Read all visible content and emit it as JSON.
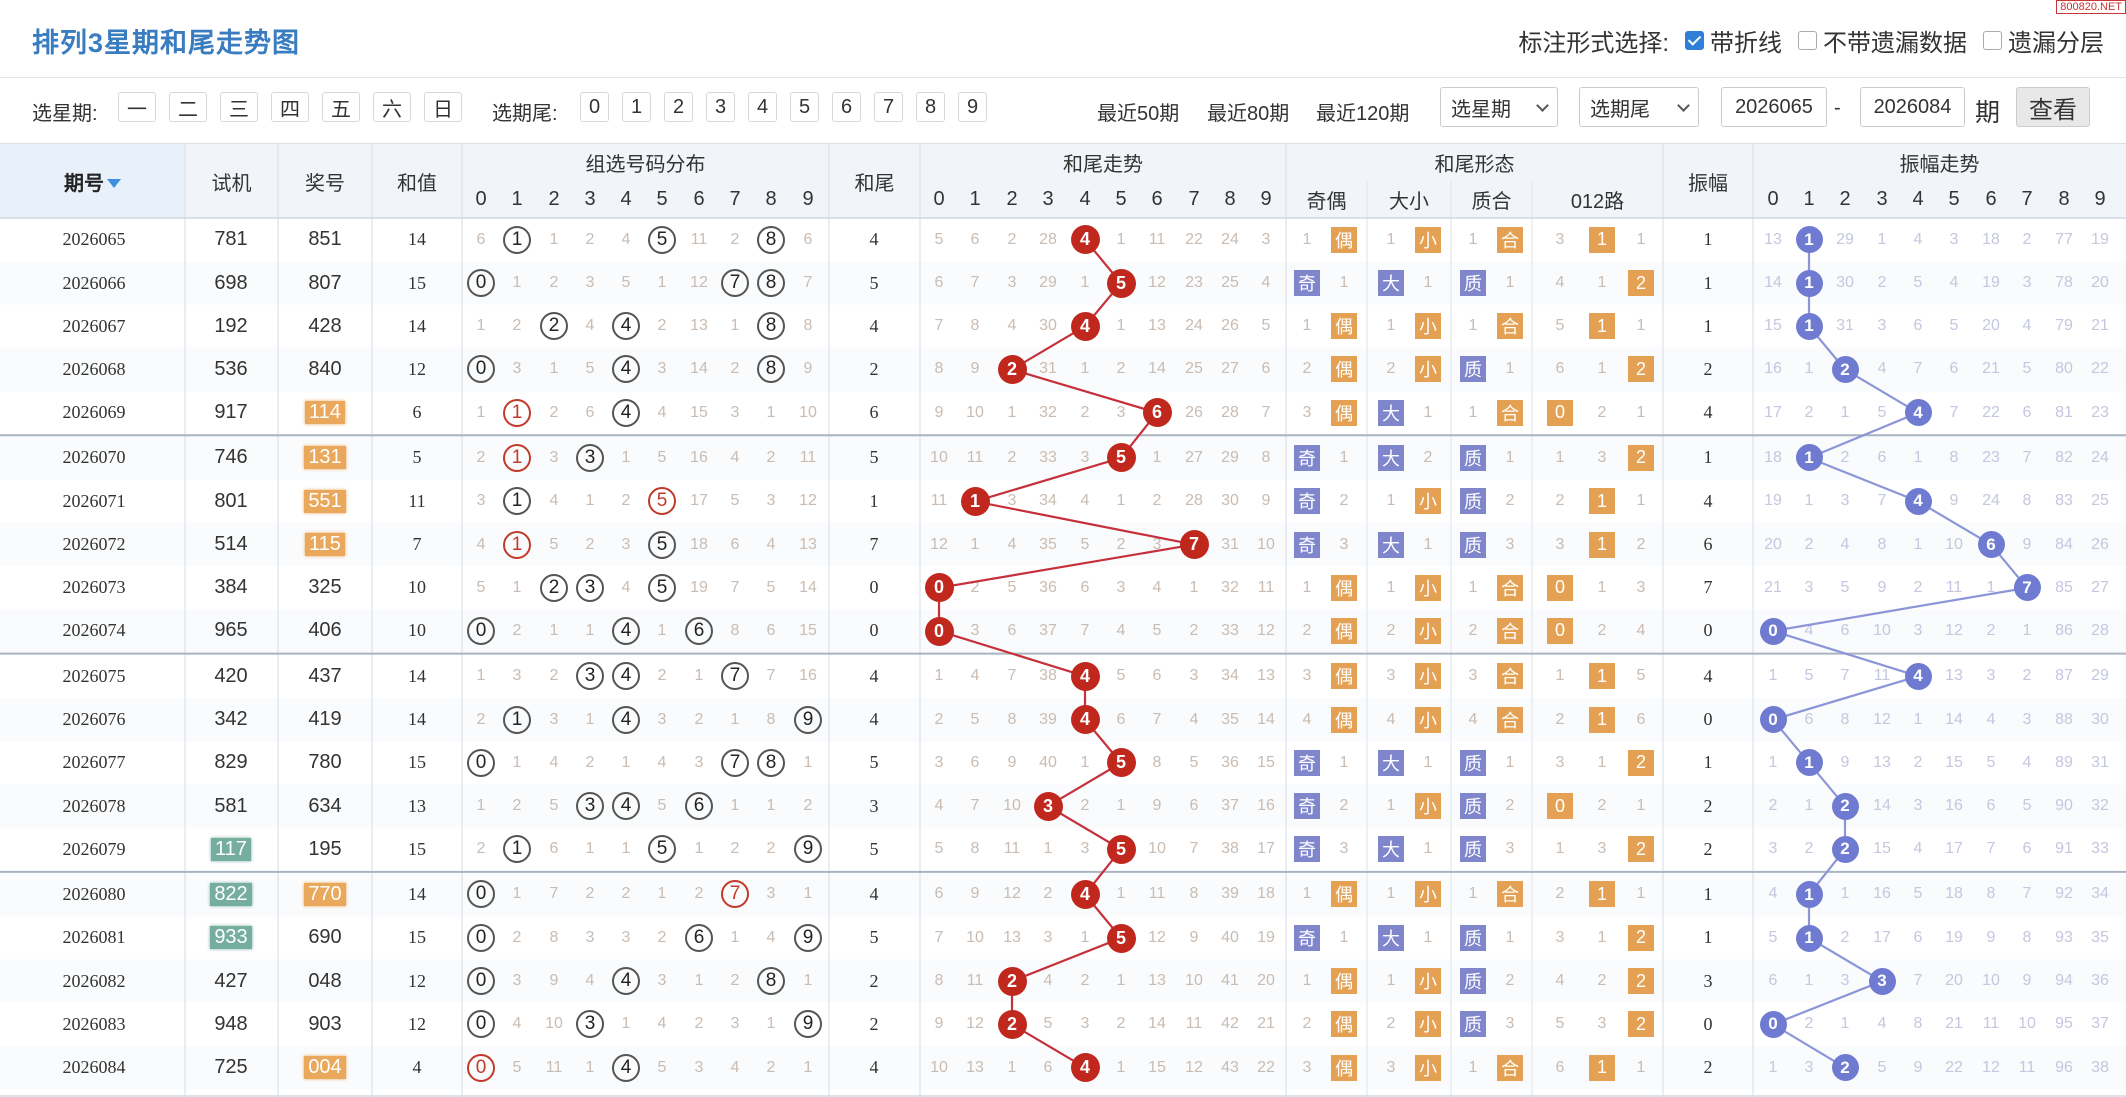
{
  "page": {
    "title": "排列3星期和尾走势图",
    "watermark": "800820.NET",
    "mark_label": "标注形式选择:",
    "mark_options": [
      {
        "label": "带折线",
        "checked": true
      },
      {
        "label": "不带遗漏数据",
        "checked": false
      },
      {
        "label": "遗漏分层",
        "checked": false
      }
    ]
  },
  "toolbar": {
    "weekday_label": "选星期:",
    "weekdays": [
      "一",
      "二",
      "三",
      "四",
      "五",
      "六",
      "日"
    ],
    "tail_label": "选期尾:",
    "tails": [
      "0",
      "1",
      "2",
      "3",
      "4",
      "5",
      "6",
      "7",
      "8",
      "9"
    ],
    "ranges": [
      "最近50期",
      "最近80期",
      "最近120期"
    ],
    "select_week": "选星期",
    "select_tail": "选期尾",
    "from": "2026065",
    "dash": "-",
    "to": "2026084",
    "period_char": "期",
    "query": "查看"
  },
  "headers": {
    "issue": "期号",
    "trial": "试机",
    "prize": "奖号",
    "sum": "和值",
    "group_dist": "组选号码分布",
    "tail": "和尾",
    "tail_trend": "和尾走势",
    "tail_form": "和尾形态",
    "odd_even": "奇偶",
    "big_small": "大小",
    "prime_comp": "质合",
    "road": "012路",
    "amp": "振幅",
    "amp_trend": "振幅走势",
    "digits": [
      "0",
      "1",
      "2",
      "3",
      "4",
      "5",
      "6",
      "7",
      "8",
      "9"
    ]
  },
  "form_labels": {
    "odd": "奇",
    "even": "偶",
    "big": "大",
    "small": "小",
    "prime": "质",
    "comp": "合"
  },
  "rows": [
    {
      "issue": "2026065",
      "trial": "781",
      "trial_hl": false,
      "prize": "851",
      "prize_hl": false,
      "sum": "14",
      "tail": "4",
      "amp": "1",
      "dist": [
        "6",
        "1",
        "1",
        "2",
        "4",
        "5",
        "11",
        "2",
        "8",
        "6"
      ],
      "trend": [
        "5",
        "6",
        "2",
        "28",
        "4",
        "1",
        "11",
        "22",
        "24",
        "3"
      ],
      "oe": [
        "1",
        "偶"
      ],
      "bs": [
        "1",
        "小"
      ],
      "pc": [
        "1",
        "合"
      ],
      "road": [
        "3",
        "1",
        "1"
      ],
      "ampt": [
        "13",
        "1",
        "29",
        "1",
        "4",
        "3",
        "18",
        "2",
        "77",
        "19"
      ]
    },
    {
      "issue": "2026066",
      "trial": "698",
      "trial_hl": false,
      "prize": "807",
      "prize_hl": false,
      "sum": "15",
      "tail": "5",
      "amp": "1",
      "dist": [
        "0",
        "1",
        "2",
        "3",
        "5",
        "1",
        "12",
        "7",
        "8",
        "7"
      ],
      "trend": [
        "6",
        "7",
        "3",
        "29",
        "1",
        "5",
        "12",
        "23",
        "25",
        "4"
      ],
      "oe": [
        "奇",
        "1"
      ],
      "bs": [
        "大",
        "1"
      ],
      "pc": [
        "质",
        "1"
      ],
      "road": [
        "4",
        "1",
        "2"
      ],
      "ampt": [
        "14",
        "1",
        "30",
        "2",
        "5",
        "4",
        "19",
        "3",
        "78",
        "20"
      ]
    },
    {
      "issue": "2026067",
      "trial": "192",
      "trial_hl": false,
      "prize": "428",
      "prize_hl": false,
      "sum": "14",
      "tail": "4",
      "amp": "1",
      "dist": [
        "1",
        "2",
        "2",
        "4",
        "4",
        "2",
        "13",
        "1",
        "8",
        "8"
      ],
      "trend": [
        "7",
        "8",
        "4",
        "30",
        "4",
        "1",
        "13",
        "24",
        "26",
        "5"
      ],
      "oe": [
        "1",
        "偶"
      ],
      "bs": [
        "1",
        "小"
      ],
      "pc": [
        "1",
        "合"
      ],
      "road": [
        "5",
        "1",
        "1"
      ],
      "ampt": [
        "15",
        "1",
        "31",
        "3",
        "6",
        "5",
        "20",
        "4",
        "79",
        "21"
      ]
    },
    {
      "issue": "2026068",
      "trial": "536",
      "trial_hl": false,
      "prize": "840",
      "prize_hl": false,
      "sum": "12",
      "tail": "2",
      "amp": "2",
      "dist": [
        "0",
        "3",
        "1",
        "5",
        "4",
        "3",
        "14",
        "2",
        "8",
        "9"
      ],
      "trend": [
        "8",
        "9",
        "2",
        "31",
        "1",
        "2",
        "14",
        "25",
        "27",
        "6"
      ],
      "oe": [
        "2",
        "偶"
      ],
      "bs": [
        "2",
        "小"
      ],
      "pc": [
        "质",
        "1"
      ],
      "road": [
        "6",
        "1",
        "2"
      ],
      "ampt": [
        "16",
        "1",
        "2",
        "4",
        "7",
        "6",
        "21",
        "5",
        "80",
        "22"
      ]
    },
    {
      "issue": "2026069",
      "trial": "917",
      "trial_hl": false,
      "prize": "114",
      "prize_hl": true,
      "sum": "6",
      "tail": "6",
      "amp": "4",
      "dist": [
        "1",
        "1",
        "2",
        "6",
        "4",
        "4",
        "15",
        "3",
        "1",
        "10"
      ],
      "trend": [
        "9",
        "10",
        "1",
        "32",
        "2",
        "3",
        "6",
        "26",
        "28",
        "7"
      ],
      "oe": [
        "3",
        "偶"
      ],
      "bs": [
        "大",
        "1"
      ],
      "pc": [
        "1",
        "合"
      ],
      "road": [
        "0",
        "2",
        "1"
      ],
      "ampt": [
        "17",
        "2",
        "1",
        "5",
        "4",
        "7",
        "22",
        "6",
        "81",
        "23"
      ]
    },
    {
      "issue": "2026070",
      "trial": "746",
      "trial_hl": false,
      "prize": "131",
      "prize_hl": true,
      "sum": "5",
      "tail": "5",
      "amp": "1",
      "dist": [
        "2",
        "1",
        "3",
        "3",
        "1",
        "5",
        "16",
        "4",
        "2",
        "11"
      ],
      "trend": [
        "10",
        "11",
        "2",
        "33",
        "3",
        "5",
        "1",
        "27",
        "29",
        "8"
      ],
      "oe": [
        "奇",
        "1"
      ],
      "bs": [
        "大",
        "2"
      ],
      "pc": [
        "质",
        "1"
      ],
      "road": [
        "1",
        "3",
        "2"
      ],
      "ampt": [
        "18",
        "1",
        "2",
        "6",
        "1",
        "8",
        "23",
        "7",
        "82",
        "24"
      ]
    },
    {
      "issue": "2026071",
      "trial": "801",
      "trial_hl": false,
      "prize": "551",
      "prize_hl": true,
      "sum": "11",
      "tail": "1",
      "amp": "4",
      "dist": [
        "3",
        "1",
        "4",
        "1",
        "2",
        "5",
        "17",
        "5",
        "3",
        "12"
      ],
      "trend": [
        "11",
        "1",
        "3",
        "34",
        "4",
        "1",
        "2",
        "28",
        "30",
        "9"
      ],
      "oe": [
        "奇",
        "2"
      ],
      "bs": [
        "1",
        "小"
      ],
      "pc": [
        "质",
        "2"
      ],
      "road": [
        "2",
        "1",
        "1"
      ],
      "ampt": [
        "19",
        "1",
        "3",
        "7",
        "4",
        "9",
        "24",
        "8",
        "83",
        "25"
      ]
    },
    {
      "issue": "2026072",
      "trial": "514",
      "trial_hl": false,
      "prize": "115",
      "prize_hl": true,
      "sum": "7",
      "tail": "7",
      "amp": "6",
      "dist": [
        "4",
        "1",
        "5",
        "2",
        "3",
        "5",
        "18",
        "6",
        "4",
        "13"
      ],
      "trend": [
        "12",
        "1",
        "4",
        "35",
        "5",
        "2",
        "3",
        "7",
        "31",
        "10"
      ],
      "oe": [
        "奇",
        "3"
      ],
      "bs": [
        "大",
        "1"
      ],
      "pc": [
        "质",
        "3"
      ],
      "road": [
        "3",
        "1",
        "2"
      ],
      "ampt": [
        "20",
        "2",
        "4",
        "8",
        "1",
        "10",
        "6",
        "9",
        "84",
        "26"
      ]
    },
    {
      "issue": "2026073",
      "trial": "384",
      "trial_hl": false,
      "prize": "325",
      "prize_hl": false,
      "sum": "10",
      "tail": "0",
      "amp": "7",
      "dist": [
        "5",
        "1",
        "2",
        "3",
        "4",
        "5",
        "19",
        "7",
        "5",
        "14"
      ],
      "trend": [
        "0",
        "2",
        "5",
        "36",
        "6",
        "3",
        "4",
        "1",
        "32",
        "11"
      ],
      "oe": [
        "1",
        "偶"
      ],
      "bs": [
        "1",
        "小"
      ],
      "pc": [
        "1",
        "合"
      ],
      "road": [
        "0",
        "1",
        "3"
      ],
      "ampt": [
        "21",
        "3",
        "5",
        "9",
        "2",
        "11",
        "1",
        "7",
        "85",
        "27"
      ]
    },
    {
      "issue": "2026074",
      "trial": "965",
      "trial_hl": false,
      "prize": "406",
      "prize_hl": false,
      "sum": "10",
      "tail": "0",
      "amp": "0",
      "dist": [
        "0",
        "2",
        "1",
        "1",
        "4",
        "1",
        "6",
        "8",
        "6",
        "15"
      ],
      "trend": [
        "0",
        "3",
        "6",
        "37",
        "7",
        "4",
        "5",
        "2",
        "33",
        "12"
      ],
      "oe": [
        "2",
        "偶"
      ],
      "bs": [
        "2",
        "小"
      ],
      "pc": [
        "2",
        "合"
      ],
      "road": [
        "0",
        "2",
        "4"
      ],
      "ampt": [
        "0",
        "4",
        "6",
        "10",
        "3",
        "12",
        "2",
        "1",
        "86",
        "28"
      ]
    },
    {
      "issue": "2026075",
      "trial": "420",
      "trial_hl": false,
      "prize": "437",
      "prize_hl": false,
      "sum": "14",
      "tail": "4",
      "amp": "4",
      "dist": [
        "1",
        "3",
        "2",
        "3",
        "4",
        "2",
        "1",
        "7",
        "7",
        "16"
      ],
      "trend": [
        "1",
        "4",
        "7",
        "38",
        "4",
        "5",
        "6",
        "3",
        "34",
        "13"
      ],
      "oe": [
        "3",
        "偶"
      ],
      "bs": [
        "3",
        "小"
      ],
      "pc": [
        "3",
        "合"
      ],
      "road": [
        "1",
        "1",
        "5"
      ],
      "ampt": [
        "1",
        "5",
        "7",
        "11",
        "4",
        "13",
        "3",
        "2",
        "87",
        "29"
      ]
    },
    {
      "issue": "2026076",
      "trial": "342",
      "trial_hl": false,
      "prize": "419",
      "prize_hl": false,
      "sum": "14",
      "tail": "4",
      "amp": "0",
      "dist": [
        "2",
        "1",
        "3",
        "1",
        "4",
        "3",
        "2",
        "1",
        "8",
        "9"
      ],
      "trend": [
        "2",
        "5",
        "8",
        "39",
        "4",
        "6",
        "7",
        "4",
        "35",
        "14"
      ],
      "oe": [
        "4",
        "偶"
      ],
      "bs": [
        "4",
        "小"
      ],
      "pc": [
        "4",
        "合"
      ],
      "road": [
        "2",
        "1",
        "6"
      ],
      "ampt": [
        "0",
        "6",
        "8",
        "12",
        "1",
        "14",
        "4",
        "3",
        "88",
        "30"
      ]
    },
    {
      "issue": "2026077",
      "trial": "829",
      "trial_hl": false,
      "prize": "780",
      "prize_hl": false,
      "sum": "15",
      "tail": "5",
      "amp": "1",
      "dist": [
        "0",
        "1",
        "4",
        "2",
        "1",
        "4",
        "3",
        "7",
        "8",
        "1"
      ],
      "trend": [
        "3",
        "6",
        "9",
        "40",
        "1",
        "5",
        "8",
        "5",
        "36",
        "15"
      ],
      "oe": [
        "奇",
        "1"
      ],
      "bs": [
        "大",
        "1"
      ],
      "pc": [
        "质",
        "1"
      ],
      "road": [
        "3",
        "1",
        "2"
      ],
      "ampt": [
        "1",
        "1",
        "9",
        "13",
        "2",
        "15",
        "5",
        "4",
        "89",
        "31"
      ]
    },
    {
      "issue": "2026078",
      "trial": "581",
      "trial_hl": false,
      "prize": "634",
      "prize_hl": false,
      "sum": "13",
      "tail": "3",
      "amp": "2",
      "dist": [
        "1",
        "2",
        "5",
        "3",
        "4",
        "5",
        "6",
        "1",
        "1",
        "2"
      ],
      "trend": [
        "4",
        "7",
        "10",
        "3",
        "2",
        "1",
        "9",
        "6",
        "37",
        "16"
      ],
      "oe": [
        "奇",
        "2"
      ],
      "bs": [
        "1",
        "小"
      ],
      "pc": [
        "质",
        "2"
      ],
      "road": [
        "0",
        "2",
        "1"
      ],
      "ampt": [
        "2",
        "1",
        "2",
        "14",
        "3",
        "16",
        "6",
        "5",
        "90",
        "32"
      ]
    },
    {
      "issue": "2026079",
      "trial": "117",
      "trial_hl": true,
      "prize": "195",
      "prize_hl": false,
      "sum": "15",
      "tail": "5",
      "amp": "2",
      "dist": [
        "2",
        "1",
        "6",
        "1",
        "1",
        "5",
        "1",
        "2",
        "2",
        "9"
      ],
      "trend": [
        "5",
        "8",
        "11",
        "1",
        "3",
        "5",
        "10",
        "7",
        "38",
        "17"
      ],
      "oe": [
        "奇",
        "3"
      ],
      "bs": [
        "大",
        "1"
      ],
      "pc": [
        "质",
        "3"
      ],
      "road": [
        "1",
        "3",
        "2"
      ],
      "ampt": [
        "3",
        "2",
        "2",
        "15",
        "4",
        "17",
        "7",
        "6",
        "91",
        "33"
      ]
    },
    {
      "issue": "2026080",
      "trial": "822",
      "trial_hl": true,
      "prize": "770",
      "prize_hl": true,
      "sum": "14",
      "tail": "4",
      "amp": "1",
      "dist": [
        "0",
        "1",
        "7",
        "2",
        "2",
        "1",
        "2",
        "7",
        "3",
        "1"
      ],
      "trend": [
        "6",
        "9",
        "12",
        "2",
        "4",
        "1",
        "11",
        "8",
        "39",
        "18"
      ],
      "oe": [
        "1",
        "偶"
      ],
      "bs": [
        "1",
        "小"
      ],
      "pc": [
        "1",
        "合"
      ],
      "road": [
        "2",
        "1",
        "1"
      ],
      "ampt": [
        "4",
        "1",
        "1",
        "16",
        "5",
        "18",
        "8",
        "7",
        "92",
        "34"
      ]
    },
    {
      "issue": "2026081",
      "trial": "933",
      "trial_hl": true,
      "prize": "690",
      "prize_hl": false,
      "sum": "15",
      "tail": "5",
      "amp": "1",
      "dist": [
        "0",
        "2",
        "8",
        "3",
        "3",
        "2",
        "6",
        "1",
        "4",
        "9"
      ],
      "trend": [
        "7",
        "10",
        "13",
        "3",
        "1",
        "5",
        "12",
        "9",
        "40",
        "19"
      ],
      "oe": [
        "奇",
        "1"
      ],
      "bs": [
        "大",
        "1"
      ],
      "pc": [
        "质",
        "1"
      ],
      "road": [
        "3",
        "1",
        "2"
      ],
      "ampt": [
        "5",
        "1",
        "2",
        "17",
        "6",
        "19",
        "9",
        "8",
        "93",
        "35"
      ]
    },
    {
      "issue": "2026082",
      "trial": "427",
      "trial_hl": false,
      "prize": "048",
      "prize_hl": false,
      "sum": "12",
      "tail": "2",
      "amp": "3",
      "dist": [
        "0",
        "3",
        "9",
        "4",
        "4",
        "3",
        "1",
        "2",
        "8",
        "1"
      ],
      "trend": [
        "8",
        "11",
        "2",
        "4",
        "2",
        "1",
        "13",
        "10",
        "41",
        "20"
      ],
      "oe": [
        "1",
        "偶"
      ],
      "bs": [
        "1",
        "小"
      ],
      "pc": [
        "质",
        "2"
      ],
      "road": [
        "4",
        "2",
        "2"
      ],
      "ampt": [
        "6",
        "1",
        "3",
        "3",
        "7",
        "20",
        "10",
        "9",
        "94",
        "36"
      ]
    },
    {
      "issue": "2026083",
      "trial": "948",
      "trial_hl": false,
      "prize": "903",
      "prize_hl": false,
      "sum": "12",
      "tail": "2",
      "amp": "0",
      "dist": [
        "0",
        "4",
        "10",
        "3",
        "1",
        "4",
        "2",
        "3",
        "1",
        "9"
      ],
      "trend": [
        "9",
        "12",
        "2",
        "5",
        "3",
        "2",
        "14",
        "11",
        "42",
        "21"
      ],
      "oe": [
        "2",
        "偶"
      ],
      "bs": [
        "2",
        "小"
      ],
      "pc": [
        "质",
        "3"
      ],
      "road": [
        "5",
        "3",
        "2"
      ],
      "ampt": [
        "0",
        "2",
        "1",
        "4",
        "8",
        "21",
        "11",
        "10",
        "95",
        "37"
      ]
    },
    {
      "issue": "2026084",
      "trial": "725",
      "trial_hl": false,
      "prize": "004",
      "prize_hl": true,
      "sum": "4",
      "tail": "4",
      "amp": "2",
      "dist": [
        "0",
        "5",
        "11",
        "1",
        "4",
        "5",
        "3",
        "4",
        "2",
        "1"
      ],
      "trend": [
        "10",
        "13",
        "1",
        "6",
        "4",
        "1",
        "15",
        "12",
        "43",
        "22"
      ],
      "oe": [
        "3",
        "偶"
      ],
      "bs": [
        "3",
        "小"
      ],
      "pc": [
        "1",
        "合"
      ],
      "road": [
        "6",
        "1",
        "1"
      ],
      "ampt": [
        "1",
        "3",
        "2",
        "5",
        "9",
        "22",
        "12",
        "11",
        "96",
        "38"
      ]
    }
  ]
}
